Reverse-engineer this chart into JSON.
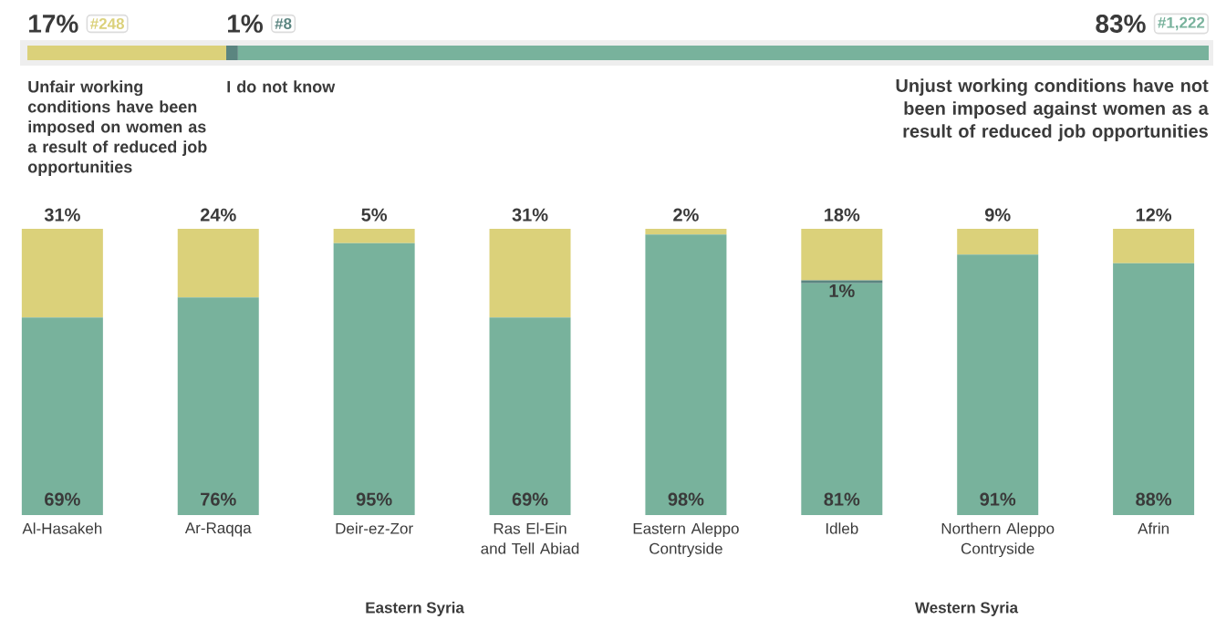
{
  "chart_data": [
    {
      "type": "bar",
      "orientation": "horizontal",
      "stacked": true,
      "categories": [
        null
      ],
      "series": [
        {
          "name": "Unfair working conditions have been imposed on women as a result of reduced job opportunities",
          "color": "#dbd17a",
          "values": [
            17
          ],
          "value_labels": [
            "17%"
          ]
        },
        {
          "name": "I do not know",
          "color": "#5b8580",
          "values": [
            1
          ],
          "value_labels": [
            "1%"
          ]
        },
        {
          "name": "Unjust working conditions have not been imposed against women as a result of reduced job opportunities",
          "color": "#78b29c",
          "values": [
            83
          ],
          "value_labels": [
            "83%"
          ]
        }
      ],
      "annotations": [
        "#248",
        "#8",
        "#1,222"
      ]
    },
    {
      "type": "bar",
      "stacked": true,
      "ylim": [
        0,
        100
      ],
      "categories": [
        "Al-Hasakeh",
        "Ar-Raqqa",
        "Deir-ez-Zor",
        "Ras El-Ein and Tell Abiad",
        "Eastern Aleppo Contryside",
        "Idleb",
        "Northern Aleppo Contryside",
        "Afrin"
      ],
      "series": [
        {
          "color": "#78b29c",
          "values": [
            69,
            76,
            95,
            69,
            98,
            81,
            91,
            88
          ],
          "value_labels": [
            "69%",
            "76%",
            "95%",
            "69%",
            "98%",
            "81%",
            "91%",
            "88%"
          ]
        },
        {
          "color": "#5b8580",
          "values": [
            null,
            null,
            null,
            null,
            null,
            1,
            null,
            null
          ],
          "value_labels": [
            null,
            null,
            null,
            null,
            null,
            "1%",
            null,
            null
          ]
        },
        {
          "color": "#dbd17a",
          "values": [
            31,
            24,
            5,
            31,
            2,
            18,
            9,
            12
          ],
          "value_labels": [
            "31%",
            "24%",
            "5%",
            "31%",
            "2%",
            "18%",
            "9%",
            "12%"
          ]
        }
      ],
      "annotations": [
        "Eastern Syria",
        "Western Syria"
      ]
    }
  ]
}
